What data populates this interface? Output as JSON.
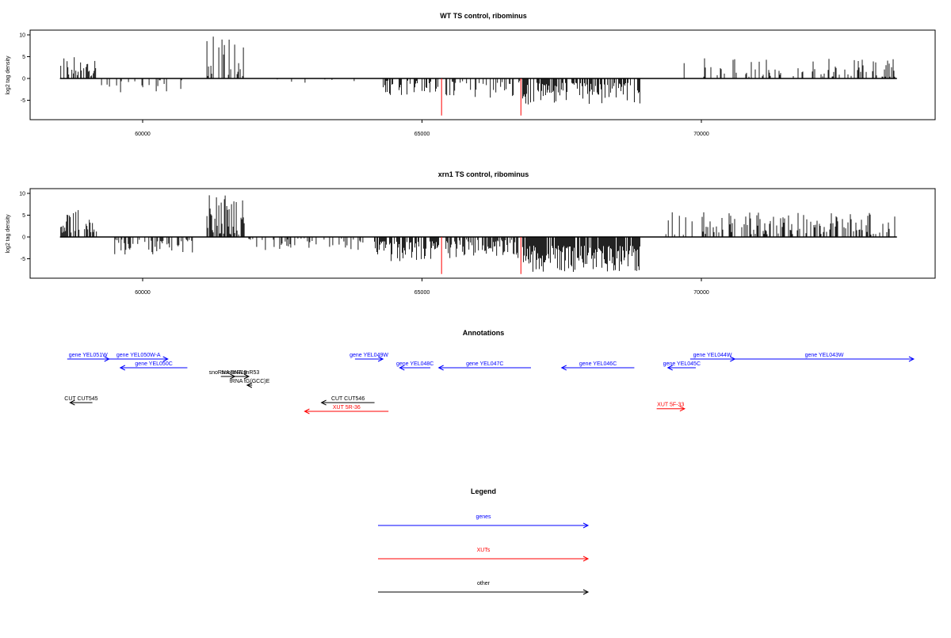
{
  "chart_data": [
    {
      "type": "bar",
      "title": "WT TS control, ribominus",
      "ylabel": "log2 tag density",
      "xlabel": "",
      "xlim": [
        58500,
        73600
      ],
      "ylim": [
        -9,
        10.5
      ],
      "yticks": [
        -5,
        0,
        5,
        10
      ],
      "xticks": [
        60000,
        65000,
        70000
      ],
      "grid": false,
      "bar_color": "#000000",
      "highlight_color": "#ff0000",
      "highlights": [
        {
          "x": 65350,
          "value": -8.5
        },
        {
          "x": 66770,
          "value": -8.5
        }
      ],
      "regions": [
        {
          "start": 58520,
          "end": 59200,
          "sign": 1,
          "min": 0.5,
          "max": 5.5,
          "density": 0.5
        },
        {
          "start": 59250,
          "end": 60900,
          "sign": -1,
          "min": 0.3,
          "max": 3.5,
          "density": 0.22
        },
        {
          "start": 61150,
          "end": 61850,
          "sign": 1,
          "min": 0.5,
          "max": 10.3,
          "density": 0.45
        },
        {
          "start": 61900,
          "end": 63950,
          "sign": -1,
          "min": 0.2,
          "max": 1.2,
          "density": 0.04
        },
        {
          "start": 64150,
          "end": 65300,
          "sign": -1,
          "min": 0.5,
          "max": 4.0,
          "density": 0.35
        },
        {
          "start": 65400,
          "end": 66750,
          "sign": -1,
          "min": 0.5,
          "max": 4.5,
          "density": 0.4
        },
        {
          "start": 66800,
          "end": 68900,
          "sign": -1,
          "min": 1.0,
          "max": 6.2,
          "density": 0.65
        },
        {
          "start": 69450,
          "end": 69850,
          "sign": 1,
          "min": 0.4,
          "max": 5.2,
          "density": 0.06
        },
        {
          "start": 70000,
          "end": 73500,
          "sign": 1,
          "min": 0.4,
          "max": 4.8,
          "density": 0.28
        }
      ]
    },
    {
      "type": "bar",
      "title": "xrn1 TS control, ribominus",
      "ylabel": "log2 tag density",
      "xlabel": "",
      "xlim": [
        58500,
        73600
      ],
      "ylim": [
        -9,
        10.5
      ],
      "yticks": [
        -5,
        0,
        5,
        10
      ],
      "xticks": [
        60000,
        65000,
        70000
      ],
      "grid": false,
      "bar_color": "#000000",
      "highlight_color": "#ff0000",
      "highlights": [
        {
          "x": 65350,
          "value": -8.5
        },
        {
          "x": 66770,
          "value": -8.5
        }
      ],
      "regions": [
        {
          "start": 58520,
          "end": 59200,
          "sign": 1,
          "min": 1.0,
          "max": 6.3,
          "density": 0.6
        },
        {
          "start": 59500,
          "end": 60900,
          "sign": -1,
          "min": 0.5,
          "max": 4.0,
          "density": 0.5
        },
        {
          "start": 61150,
          "end": 61850,
          "sign": 1,
          "min": 0.5,
          "max": 9.8,
          "density": 0.55
        },
        {
          "start": 61900,
          "end": 63950,
          "sign": -1,
          "min": 0.3,
          "max": 3.0,
          "density": 0.2
        },
        {
          "start": 64150,
          "end": 65300,
          "sign": -1,
          "min": 1.0,
          "max": 6.0,
          "density": 0.75
        },
        {
          "start": 65400,
          "end": 66750,
          "sign": -1,
          "min": 0.5,
          "max": 5.0,
          "density": 0.6
        },
        {
          "start": 66800,
          "end": 68900,
          "sign": -1,
          "min": 2.0,
          "max": 8.0,
          "density": 0.9
        },
        {
          "start": 69350,
          "end": 69850,
          "sign": 1,
          "min": 0.4,
          "max": 6.0,
          "density": 0.25
        },
        {
          "start": 70000,
          "end": 73500,
          "sign": 1,
          "min": 0.5,
          "max": 5.8,
          "density": 0.45
        }
      ]
    }
  ],
  "annotations": {
    "title": "Annotations",
    "items": [
      {
        "label": "gene YEL051W",
        "color": "#0000ff",
        "start": 58650,
        "end": 59400,
        "row": 0
      },
      {
        "label": "gene YEL050W-A",
        "color": "#0000ff",
        "start": 59400,
        "end": 60450,
        "row": 0
      },
      {
        "label": "gene YEL050C",
        "color": "#0000ff",
        "start": 60800,
        "end": 59600,
        "row": 1
      },
      {
        "label": "snoRNA snR18",
        "color": "#000000",
        "start": 61400,
        "end": 61650,
        "row": 2
      },
      {
        "label": "snoRNA snR53",
        "color": "#000000",
        "start": 61600,
        "end": 61900,
        "row": 2
      },
      {
        "label": "tRNA tG(GCC)E",
        "color": "#000000",
        "start": 61960,
        "end": 61870,
        "row": 3
      },
      {
        "label": "gene YEL049W",
        "color": "#0000ff",
        "start": 63800,
        "end": 64300,
        "row": 0
      },
      {
        "label": "gene YEL048C",
        "color": "#0000ff",
        "start": 65150,
        "end": 64600,
        "row": 1
      },
      {
        "label": "gene YEL047C",
        "color": "#0000ff",
        "start": 66950,
        "end": 65300,
        "row": 1
      },
      {
        "label": "gene YEL046C",
        "color": "#0000ff",
        "start": 68800,
        "end": 67500,
        "row": 1
      },
      {
        "label": "gene YEL045C",
        "color": "#0000ff",
        "start": 69900,
        "end": 69400,
        "row": 1
      },
      {
        "label": "gene YEL044W",
        "color": "#0000ff",
        "start": 69800,
        "end": 70600,
        "row": 0
      },
      {
        "label": "gene YEL043W",
        "color": "#0000ff",
        "start": 70600,
        "end": 73800,
        "row": 0
      },
      {
        "label": "CUT CUT545",
        "color": "#000000",
        "start": 59100,
        "end": 58700,
        "row": 5
      },
      {
        "label": "CUT CUT546",
        "color": "#000000",
        "start": 64150,
        "end": 63200,
        "row": 5
      },
      {
        "label": "XUT 5R-36",
        "color": "#ff0000",
        "start": 64400,
        "end": 62900,
        "row": 6
      },
      {
        "label": "XUT 5F-33",
        "color": "#ff0000",
        "start": 69200,
        "end": 69700,
        "row": 5.7
      }
    ]
  },
  "legend": {
    "title": "Legend",
    "entries": [
      {
        "label": "genes",
        "color": "#0000ff"
      },
      {
        "label": "XUTs",
        "color": "#ff0000"
      },
      {
        "label": "other",
        "color": "#000000"
      }
    ]
  }
}
